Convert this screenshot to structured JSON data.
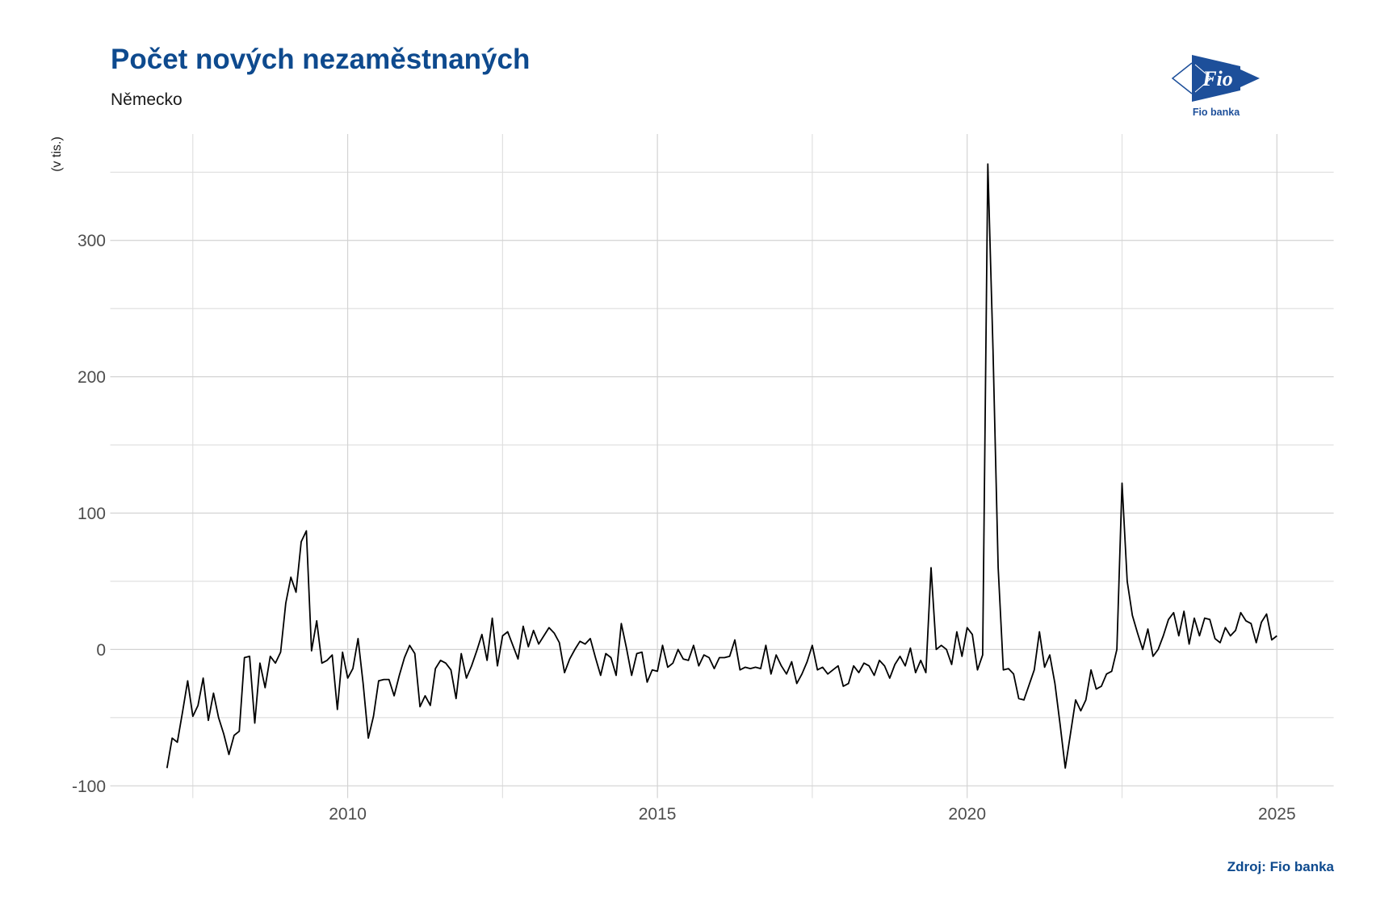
{
  "source": "Zdroj: Fio banka",
  "logo": {
    "mark": "Fio",
    "name": "Fio banka"
  },
  "colors": {
    "title": "#0e4a8e",
    "brand": "#1d4f9a",
    "line": "#000000",
    "grid_major": "#d3d3d3",
    "grid_minor": "#dedede",
    "axis_text": "#4d4d4d",
    "axis_title": "#1a1a1a"
  },
  "chart_data": {
    "type": "line",
    "title": "Počet nových nezaměstnaných",
    "subtitle": "Německo",
    "xlabel": "",
    "ylabel": "(v tis.)",
    "x": [
      "2007-01",
      "2007-02",
      "2007-03",
      "2007-04",
      "2007-05",
      "2007-06",
      "2007-07",
      "2007-08",
      "2007-09",
      "2007-10",
      "2007-11",
      "2007-12",
      "2008-01",
      "2008-02",
      "2008-03",
      "2008-04",
      "2008-05",
      "2008-06",
      "2008-07",
      "2008-08",
      "2008-09",
      "2008-10",
      "2008-11",
      "2008-12",
      "2009-01",
      "2009-02",
      "2009-03",
      "2009-04",
      "2009-05",
      "2009-06",
      "2009-07",
      "2009-08",
      "2009-09",
      "2009-10",
      "2009-11",
      "2009-12",
      "2010-01",
      "2010-02",
      "2010-03",
      "2010-04",
      "2010-05",
      "2010-06",
      "2010-07",
      "2010-08",
      "2010-09",
      "2010-10",
      "2010-11",
      "2010-12",
      "2011-01",
      "2011-02",
      "2011-03",
      "2011-04",
      "2011-05",
      "2011-06",
      "2011-07",
      "2011-08",
      "2011-09",
      "2011-10",
      "2011-11",
      "2011-12",
      "2012-01",
      "2012-02",
      "2012-03",
      "2012-04",
      "2012-05",
      "2012-06",
      "2012-07",
      "2012-08",
      "2012-09",
      "2012-10",
      "2012-11",
      "2012-12",
      "2013-01",
      "2013-02",
      "2013-03",
      "2013-04",
      "2013-05",
      "2013-06",
      "2013-07",
      "2013-08",
      "2013-09",
      "2013-10",
      "2013-11",
      "2013-12",
      "2014-01",
      "2014-02",
      "2014-03",
      "2014-04",
      "2014-05",
      "2014-06",
      "2014-07",
      "2014-08",
      "2014-09",
      "2014-10",
      "2014-11",
      "2014-12",
      "2015-01",
      "2015-02",
      "2015-03",
      "2015-04",
      "2015-05",
      "2015-06",
      "2015-07",
      "2015-08",
      "2015-09",
      "2015-10",
      "2015-11",
      "2015-12",
      "2016-01",
      "2016-02",
      "2016-03",
      "2016-04",
      "2016-05",
      "2016-06",
      "2016-07",
      "2016-08",
      "2016-09",
      "2016-10",
      "2016-11",
      "2016-12",
      "2017-01",
      "2017-02",
      "2017-03",
      "2017-04",
      "2017-05",
      "2017-06",
      "2017-07",
      "2017-08",
      "2017-09",
      "2017-10",
      "2017-11",
      "2017-12",
      "2018-01",
      "2018-02",
      "2018-03",
      "2018-04",
      "2018-05",
      "2018-06",
      "2018-07",
      "2018-08",
      "2018-09",
      "2018-10",
      "2018-11",
      "2018-12",
      "2019-01",
      "2019-02",
      "2019-03",
      "2019-04",
      "2019-05",
      "2019-06",
      "2019-07",
      "2019-08",
      "2019-09",
      "2019-10",
      "2019-11",
      "2019-12",
      "2020-01",
      "2020-02",
      "2020-03",
      "2020-04",
      "2020-05",
      "2020-06",
      "2020-07",
      "2020-08",
      "2020-09",
      "2020-10",
      "2020-11",
      "2020-12",
      "2021-01",
      "2021-02",
      "2021-03",
      "2021-04",
      "2021-05",
      "2021-06",
      "2021-07",
      "2021-08",
      "2021-09",
      "2021-10",
      "2021-11",
      "2021-12",
      "2022-01",
      "2022-02",
      "2022-03",
      "2022-04",
      "2022-05",
      "2022-06",
      "2022-07",
      "2022-08",
      "2022-09",
      "2022-10",
      "2022-11",
      "2022-12",
      "2023-01",
      "2023-02",
      "2023-03",
      "2023-04",
      "2023-05",
      "2023-06",
      "2023-07",
      "2023-08",
      "2023-09",
      "2023-10",
      "2023-11",
      "2023-12",
      "2024-01",
      "2024-02",
      "2024-03",
      "2024-04",
      "2024-05",
      "2024-06",
      "2024-07",
      "2024-08",
      "2024-09",
      "2024-10",
      "2024-11",
      "2024-12"
    ],
    "y": [
      -87,
      -65,
      -68,
      -46,
      -23,
      -49,
      -41,
      -21,
      -52,
      -32,
      -50,
      -62,
      -77,
      -63,
      -60,
      -6,
      -5,
      -54,
      -10,
      -28,
      -5,
      -10,
      -2,
      34,
      53,
      42,
      79,
      87,
      -1,
      21,
      -10,
      -8,
      -4,
      -44,
      -2,
      -21,
      -14,
      8,
      -25,
      -65,
      -49,
      -23,
      -22,
      -22,
      -34,
      -19,
      -6,
      3,
      -3,
      -42,
      -34,
      -41,
      -14,
      -8,
      -10,
      -15,
      -36,
      -3,
      -21,
      -12,
      -1,
      11,
      -8,
      23,
      -12,
      10,
      13,
      3,
      -7,
      17,
      2,
      14,
      4,
      10,
      16,
      12,
      5,
      -17,
      -7,
      0,
      6,
      4,
      8,
      -6,
      -19,
      -3,
      -6,
      -19,
      19,
      1,
      -19,
      -3,
      -2,
      -24,
      -15,
      -16,
      3,
      -13,
      -10,
      0,
      -7,
      -8,
      3,
      -12,
      -4,
      -6,
      -14,
      -6,
      -6,
      -5,
      7,
      -15,
      -13,
      -14,
      -13,
      -14,
      3,
      -18,
      -4,
      -12,
      -18,
      -9,
      -25,
      -18,
      -9,
      3,
      -15,
      -13,
      -18,
      -15,
      -12,
      -27,
      -25,
      -12,
      -17,
      -10,
      -12,
      -19,
      -8,
      -12,
      -21,
      -11,
      -5,
      -12,
      1,
      -17,
      -8,
      -17,
      60,
      0,
      3,
      0,
      -11,
      13,
      -5,
      16,
      11,
      -15,
      -4,
      356,
      220,
      60,
      -15,
      -14,
      -18,
      -36,
      -37,
      -26,
      -15,
      13,
      -13,
      -4,
      -25,
      -55,
      -87,
      -62,
      -37,
      -45,
      -37,
      -15,
      -29,
      -27,
      -18,
      -16,
      0,
      122,
      50,
      25,
      12,
      0,
      15,
      -5,
      0,
      10,
      22,
      27,
      10,
      28,
      4,
      23,
      10,
      23,
      22,
      8,
      5,
      16,
      10,
      14,
      27,
      21,
      19,
      5,
      20,
      26,
      7,
      10
    ],
    "xlim": [
      "2006-02",
      "2025-11"
    ],
    "ylim": [
      -109,
      378
    ],
    "x_ticks": [
      "2010",
      "2015",
      "2020",
      "2025"
    ],
    "y_ticks": [
      "-100",
      "0",
      "100",
      "200",
      "300"
    ],
    "grid": true
  }
}
